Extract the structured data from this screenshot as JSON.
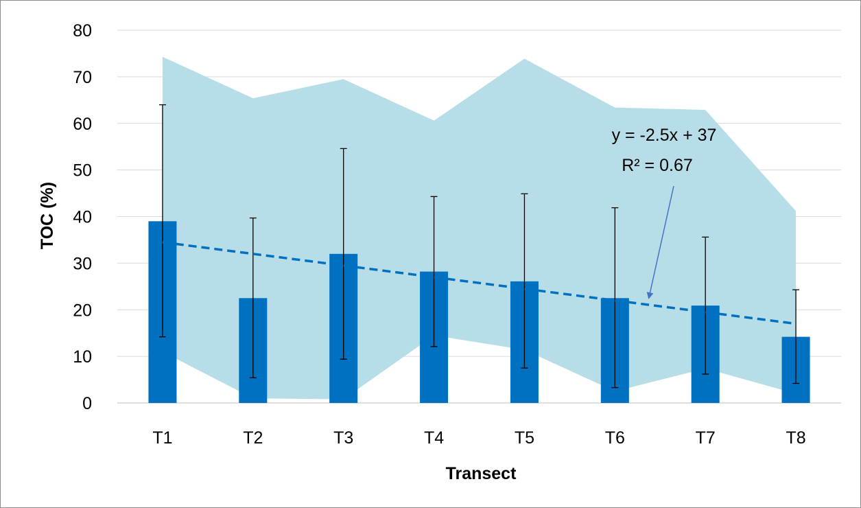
{
  "chart_data": {
    "type": "bar",
    "categories": [
      "T1",
      "T2",
      "T3",
      "T4",
      "T5",
      "T6",
      "T7",
      "T8"
    ],
    "values": [
      39,
      22.5,
      32,
      28.2,
      26.1,
      22.5,
      20.9,
      14.2
    ],
    "error_bars": {
      "upper": [
        64,
        39.7,
        54.6,
        44.3,
        44.9,
        41.9,
        35.6,
        24.3
      ],
      "lower": [
        14.2,
        5.4,
        9.4,
        12.1,
        7.5,
        3.3,
        6.2,
        4.2
      ]
    },
    "range_band": {
      "max": [
        74.3,
        65.4,
        69.5,
        60.6,
        73.9,
        63.4,
        62.9,
        41.2
      ],
      "min": [
        11.0,
        1.0,
        0.8,
        14.5,
        11.4,
        2.5,
        7.4,
        2.0
      ]
    },
    "trendline": {
      "type": "linear",
      "slope": -2.5,
      "intercept": 37,
      "equation": "y = -2.5x + 37",
      "r_squared": "R² = 0.67"
    },
    "title": "",
    "xlabel": "Transect",
    "ylabel": "TOC (%)",
    "ylim": [
      0,
      80
    ],
    "yticks": [
      "0",
      "10",
      "20",
      "30",
      "40",
      "50",
      "60",
      "70",
      "80"
    ],
    "grid": true,
    "legend": "none",
    "colors": {
      "bar": "#0070C0",
      "band": "#B7DEE8",
      "trendline": "#0070C0",
      "gridline": "#D9D9D9",
      "error_bar": "#000000",
      "arrow": "#4472C4"
    }
  }
}
